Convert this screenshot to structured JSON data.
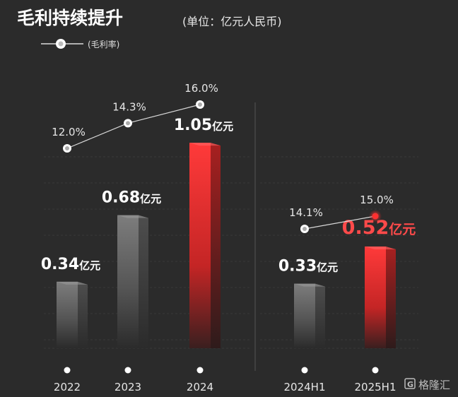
{
  "chart_data": [
    {
      "type": "bar",
      "title": "毛利持续提升",
      "subtitle": "(单位：亿元人民币)",
      "categories": [
        "2022",
        "2023",
        "2024"
      ],
      "series": [
        {
          "values": [
            0.34,
            0.68,
            1.05
          ],
          "value_labels": [
            "0.34亿元",
            "0.68亿元",
            "1.05亿元"
          ]
        },
        {
          "name": "毛利率",
          "type": "line",
          "values": [
            12.0,
            14.3,
            16.0
          ],
          "value_labels": [
            "12.0%",
            "14.3%",
            "16.0%"
          ]
        }
      ],
      "highlight_category": "2024"
    },
    {
      "type": "bar",
      "categories": [
        "2024H1",
        "2025H1"
      ],
      "series": [
        {
          "values": [
            0.33,
            0.52
          ],
          "value_labels": [
            "0.33亿元",
            "0.52亿元"
          ]
        },
        {
          "name": "毛利率",
          "type": "line",
          "values": [
            14.1,
            15.0
          ],
          "value_labels": [
            "14.1%",
            "15.0%"
          ]
        }
      ],
      "highlight_category": "2025H1"
    }
  ],
  "legend": {
    "label": "(毛利率)"
  },
  "watermark": "格隆汇",
  "colors": {
    "background": "#2b2b2b",
    "bar_gray": "#7a7a7a",
    "bar_red": "#ff3b3b",
    "highlight_text": "#ff4a4a",
    "line": "#dddddd"
  }
}
